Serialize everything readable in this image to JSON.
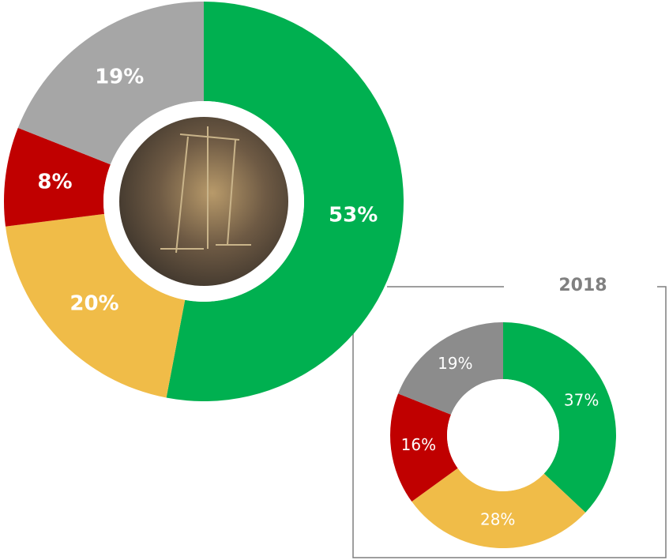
{
  "chart_data": [
    {
      "type": "pie",
      "values": [
        53,
        20,
        8,
        19
      ],
      "value_labels": [
        "53%",
        "20%",
        "8%",
        "19%"
      ],
      "colors": [
        "#00b050",
        "#f0bc48",
        "#c00000",
        "#a6a6a6"
      ]
    },
    {
      "type": "pie",
      "title": "2018",
      "values": [
        37,
        28,
        16,
        19
      ],
      "value_labels": [
        "37%",
        "28%",
        "16%",
        "19%"
      ],
      "colors": [
        "#00b050",
        "#f0bc48",
        "#c00000",
        "#8c8c8c"
      ]
    }
  ]
}
